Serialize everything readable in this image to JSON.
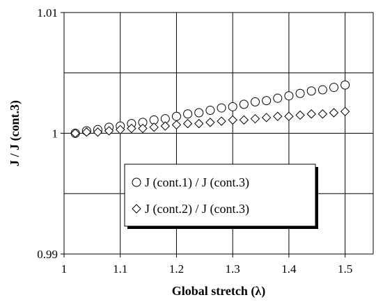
{
  "chart_data": {
    "type": "scatter",
    "xlabel": "Global stretch (λ)",
    "ylabel": "J / J (cont.3)",
    "xlim": [
      1,
      1.55
    ],
    "ylim": [
      0.99,
      1.01
    ],
    "x_ticks": [
      "1",
      "1.1",
      "1.2",
      "1.3",
      "1.4",
      "1.5"
    ],
    "y_ticks": [
      "0.99",
      "1",
      "1.01"
    ],
    "grid": true,
    "legend_position": "lower-center",
    "series": [
      {
        "name": "J (cont.1) / J (cont.3)",
        "marker": "circle",
        "x": [
          1.02,
          1.04,
          1.06,
          1.08,
          1.1,
          1.12,
          1.14,
          1.16,
          1.18,
          1.2,
          1.22,
          1.24,
          1.26,
          1.28,
          1.3,
          1.32,
          1.34,
          1.36,
          1.38,
          1.4,
          1.42,
          1.44,
          1.46,
          1.48,
          1.5
        ],
        "y": [
          1.0,
          1.0002,
          1.0003,
          1.0005,
          1.0006,
          1.0008,
          1.0009,
          1.0011,
          1.0012,
          1.0014,
          1.0016,
          1.0017,
          1.0019,
          1.0021,
          1.0022,
          1.0024,
          1.0026,
          1.0027,
          1.0029,
          1.0031,
          1.0033,
          1.0035,
          1.0036,
          1.0038,
          1.004
        ]
      },
      {
        "name": "J (cont.2) / J (cont.3)",
        "marker": "diamond",
        "x": [
          1.02,
          1.04,
          1.06,
          1.08,
          1.1,
          1.12,
          1.14,
          1.16,
          1.18,
          1.2,
          1.22,
          1.24,
          1.26,
          1.28,
          1.3,
          1.32,
          1.34,
          1.36,
          1.38,
          1.4,
          1.42,
          1.44,
          1.46,
          1.48,
          1.5
        ],
        "y": [
          1.0,
          1.0001,
          1.0001,
          1.0002,
          1.0003,
          1.0004,
          1.0004,
          1.0005,
          1.0006,
          1.0007,
          1.0008,
          1.0008,
          1.0009,
          1.001,
          1.0011,
          1.0011,
          1.0012,
          1.0013,
          1.0014,
          1.0014,
          1.0015,
          1.0016,
          1.0016,
          1.0017,
          1.0018
        ]
      }
    ]
  }
}
